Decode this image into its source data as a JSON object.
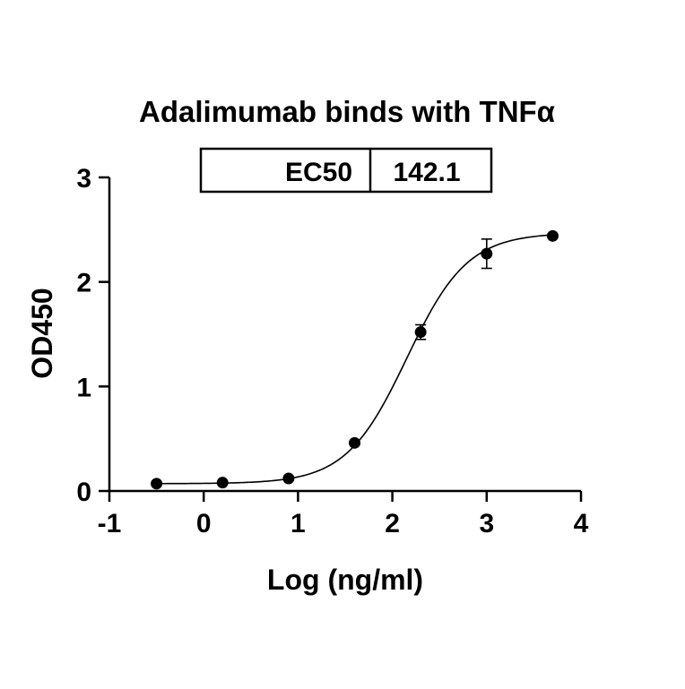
{
  "chart_data": {
    "type": "scatter",
    "title": "Adalimumab binds with TNFα",
    "xlabel": "Log (ng/ml)",
    "ylabel": "OD450",
    "xlim": [
      -1,
      4
    ],
    "ylim": [
      0,
      3
    ],
    "x_ticks": [
      -1,
      0,
      1,
      2,
      3,
      4
    ],
    "y_ticks": [
      0,
      1,
      2,
      3
    ],
    "x_tick_labels": [
      "-1",
      "0",
      "1",
      "2",
      "3",
      "4"
    ],
    "y_tick_labels": [
      "0",
      "1",
      "2",
      "3"
    ],
    "grid": false,
    "legend": "none",
    "series": [
      {
        "x": [
          -0.5,
          0.2,
          0.9,
          1.6,
          2.3,
          3.0,
          3.7
        ],
        "y": [
          0.07,
          0.08,
          0.12,
          0.46,
          1.52,
          2.27,
          2.44
        ],
        "y_err": [
          0.01,
          0.01,
          0.01,
          0.02,
          0.07,
          0.14,
          0.02
        ]
      }
    ],
    "fit_curve": {
      "model": "four-parameter logistic",
      "bottom": 0.07,
      "top": 2.47,
      "log_ec50": 2.153,
      "hill_slope": 1.35,
      "color": "#000000"
    },
    "annotation": {
      "label": "EC50",
      "value": "142.1"
    },
    "colors": {
      "points": "#000000",
      "axes": "#000000",
      "background": "#ffffff"
    }
  }
}
